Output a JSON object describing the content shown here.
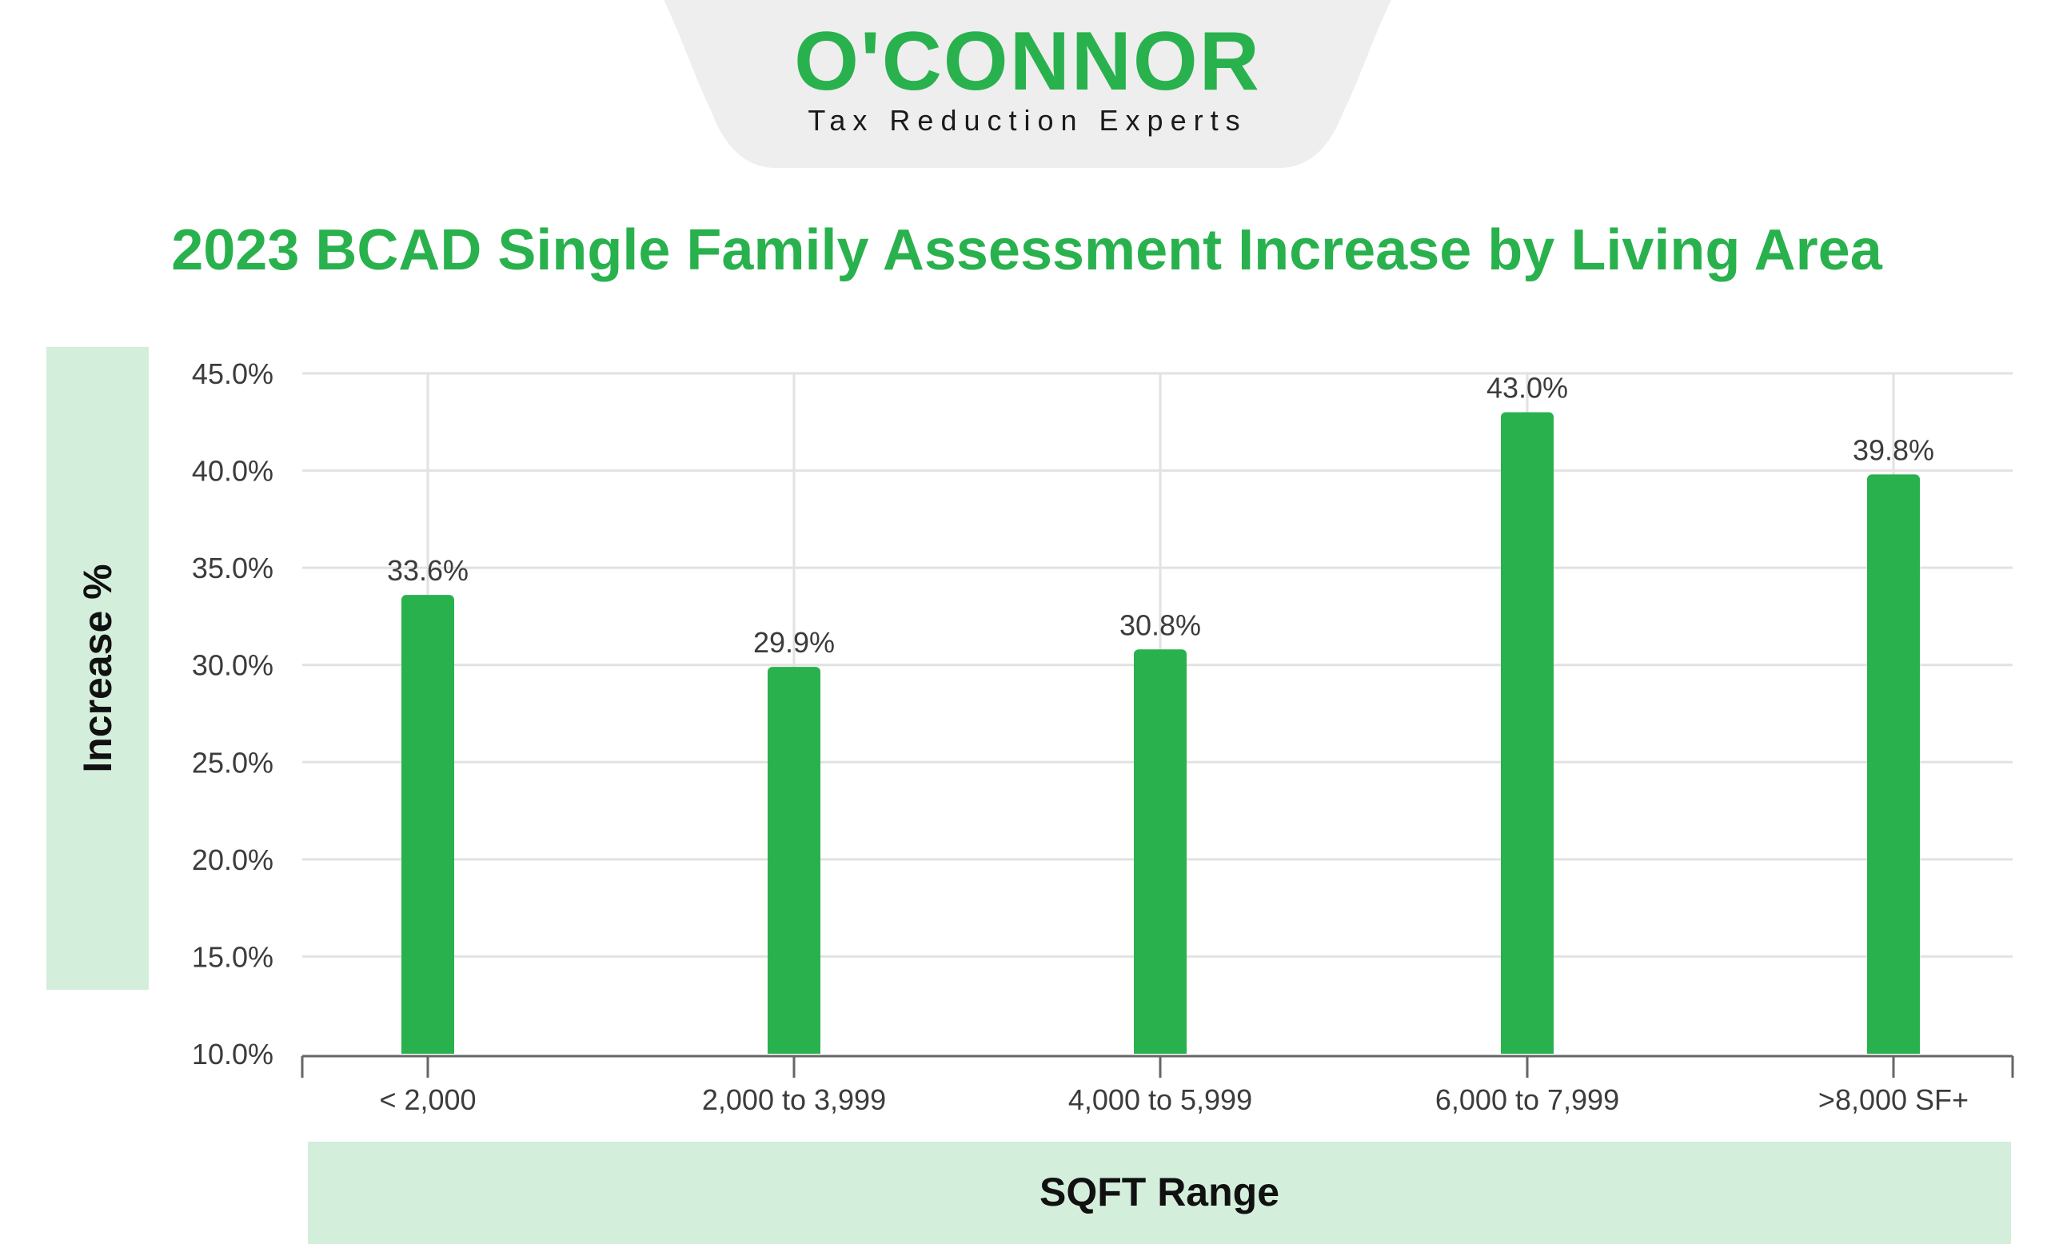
{
  "logo": {
    "brand": "O'CONNOR",
    "tagline": "Tax Reduction Experts"
  },
  "colors": {
    "brand_green": "#29b14d",
    "axis_band": "#d4eedc",
    "logo_bg": "#eeeeee",
    "grid": "#e2e2e2"
  },
  "chart_data": {
    "type": "bar",
    "title": "2023 BCAD Single Family Assessment Increase by Living Area",
    "xlabel": "SQFT Range",
    "ylabel": "Increase %",
    "categories": [
      "< 2,000",
      "2,000 to 3,999",
      "4,000 to 5,999",
      "6,000 to 7,999",
      ">8,000 SF+"
    ],
    "series": [
      {
        "values": [
          33.6,
          29.9,
          30.8,
          43.0,
          39.8
        ],
        "labels": [
          "33.6%",
          "29.9%",
          "30.8%",
          "43.0%",
          "39.8%"
        ]
      }
    ],
    "ylim": [
      10,
      45
    ],
    "yticks": [
      10,
      15,
      20,
      25,
      30,
      35,
      40,
      45
    ],
    "ytick_labels": [
      "10.0%",
      "15.0%",
      "20.0%",
      "25.0%",
      "30.0%",
      "35.0%",
      "40.0%",
      "45.0%"
    ],
    "grid": true,
    "legend": "none"
  }
}
